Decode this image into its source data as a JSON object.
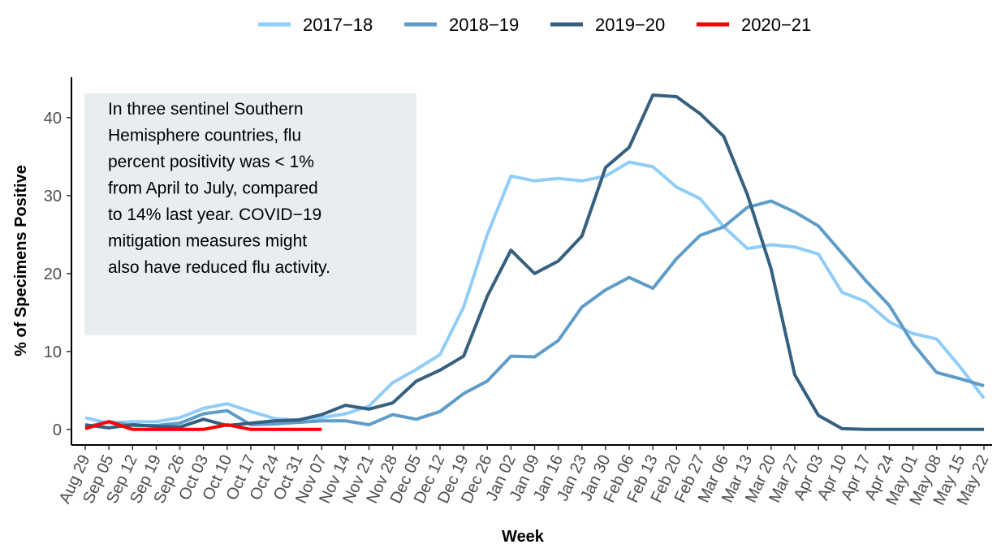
{
  "chart_data": {
    "type": "line",
    "x_label": "Week",
    "y_label": "% of Specimens Positive",
    "annotation": [
      "In three sentinel Southern",
      "Hemisphere countries, flu",
      "percent positivity was < 1%",
      "from April to July, compared",
      "to 14% last year. COVID−19",
      "mitigation measures might",
      "also have reduced flu activity."
    ],
    "categories": [
      "Aug 29",
      "Sep 05",
      "Sep 12",
      "Sep 19",
      "Sep 26",
      "Oct 03",
      "Oct 10",
      "Oct 17",
      "Oct 24",
      "Oct 31",
      "Nov 07",
      "Nov 14",
      "Nov 21",
      "Nov 28",
      "Dec 05",
      "Dec 12",
      "Dec 19",
      "Dec 26",
      "Jan 02",
      "Jan 09",
      "Jan 16",
      "Jan 23",
      "Jan 30",
      "Feb 06",
      "Feb 13",
      "Feb 20",
      "Feb 27",
      "Mar 06",
      "Mar 13",
      "Mar 20",
      "Mar 27",
      "Apr 03",
      "Apr 10",
      "Apr 17",
      "Apr 24",
      "May 01",
      "May 08",
      "May 15",
      "May 22"
    ],
    "series": [
      {
        "name": "2017−18",
        "color": "#90cdf8",
        "values": [
          1.5,
          0.8,
          1.0,
          1.0,
          1.5,
          2.7,
          3.3,
          2.3,
          1.4,
          1.2,
          1.5,
          2.0,
          3.0,
          6.0,
          7.7,
          9.6,
          15.7,
          25.0,
          32.5,
          31.9,
          32.2,
          31.9,
          32.5,
          34.3,
          33.7,
          31.1,
          29.6,
          26.0,
          23.2,
          23.7,
          23.4,
          22.5,
          17.6,
          16.4,
          13.8,
          12.3,
          11.6,
          8.0,
          4.0
        ]
      },
      {
        "name": "2018−19",
        "color": "#5f9cc8",
        "values": [
          0.3,
          1.0,
          0.5,
          0.5,
          0.8,
          2.0,
          2.4,
          0.6,
          0.7,
          0.9,
          1.1,
          1.1,
          0.6,
          1.9,
          1.3,
          2.3,
          4.6,
          6.2,
          9.4,
          9.3,
          11.4,
          15.7,
          17.9,
          19.5,
          18.1,
          21.9,
          24.9,
          26.0,
          28.5,
          29.3,
          27.9,
          26.1,
          22.6,
          19.1,
          15.9,
          11.0,
          7.3,
          6.5,
          5.6
        ]
      },
      {
        "name": "2019−20",
        "color": "#35607f",
        "values": [
          0.6,
          0.2,
          0.6,
          0.4,
          0.3,
          1.3,
          0.5,
          0.8,
          1.1,
          1.2,
          1.9,
          3.1,
          2.6,
          3.4,
          6.2,
          7.6,
          9.4,
          17.1,
          23.0,
          20.0,
          21.6,
          24.8,
          33.6,
          36.2,
          42.9,
          42.7,
          40.5,
          37.6,
          30.1,
          20.6,
          7.0,
          1.8,
          0.1,
          0,
          0,
          0,
          0,
          0,
          0
        ]
      },
      {
        "name": "2020−21",
        "color": "#ff0000",
        "values": [
          0.1,
          1.0,
          0,
          0,
          0,
          0,
          0.6,
          0,
          0,
          0,
          0,
          null,
          null,
          null,
          null,
          null,
          null,
          null,
          null,
          null,
          null,
          null,
          null,
          null,
          null,
          null,
          null,
          null,
          null,
          null,
          null,
          null,
          null,
          null,
          null,
          null,
          null,
          null,
          null
        ]
      }
    ],
    "ylim": [
      -2,
      45.2
    ],
    "yticks": [
      0,
      10,
      20,
      30,
      40
    ],
    "grid": false,
    "legend": "top"
  }
}
